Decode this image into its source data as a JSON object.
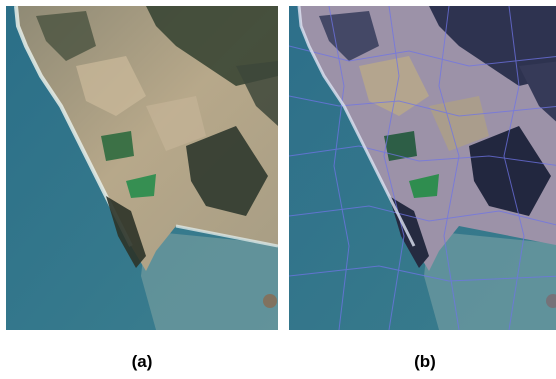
{
  "figure": {
    "panels": [
      {
        "label": "(a)"
      },
      {
        "label": "(b)"
      }
    ]
  },
  "colors": {
    "sea": "#2f6f86",
    "land_light": "#b9a88c",
    "forest_dark": "#3a4634",
    "field_green": "#2f8d4f",
    "segment_boundary": "#6f74e6"
  }
}
